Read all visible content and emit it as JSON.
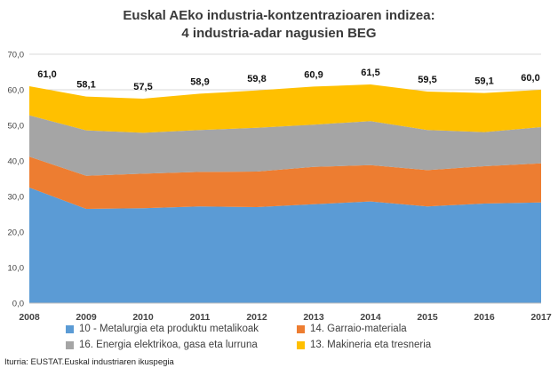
{
  "chart_data": {
    "type": "area",
    "stacked": true,
    "title_line1": "Euskal AEko industria-kontzentrazioaren indizea:",
    "title_line2": "4 industria-adar nagusien BEG",
    "categories": [
      "2008",
      "2009",
      "2010",
      "2011",
      "2012",
      "2013",
      "2014",
      "2015",
      "2016",
      "2017"
    ],
    "yticks": [
      "0,0",
      "10,0",
      "20,0",
      "30,0",
      "40,0",
      "50,0",
      "60,0",
      "70,0"
    ],
    "ylim": [
      0,
      70
    ],
    "grid": true,
    "series": [
      {
        "name": "10 - Metalurgia eta produktu metalikoak",
        "color": "#5B9BD5",
        "values": [
          32.5,
          26.5,
          26.7,
          27.2,
          27.0,
          27.8,
          28.6,
          27.2,
          28.0,
          28.3
        ]
      },
      {
        "name": "14. Garraio-materiala",
        "color": "#ED7D31",
        "values": [
          8.7,
          9.3,
          9.7,
          9.7,
          10.0,
          10.5,
          10.2,
          10.2,
          10.5,
          11.0
        ]
      },
      {
        "name": "16. Energia elektrikoa, gasa eta lurruna",
        "color": "#A5A5A5",
        "values": [
          11.6,
          12.8,
          11.5,
          11.8,
          12.3,
          11.9,
          12.4,
          11.3,
          9.6,
          10.2
        ]
      },
      {
        "name": "13. Makineria eta tresneria",
        "color": "#FFC000",
        "values": [
          8.2,
          9.5,
          9.6,
          10.2,
          10.5,
          10.7,
          10.3,
          10.8,
          11.0,
          10.5
        ]
      }
    ],
    "totals": [
      61.0,
      58.1,
      57.5,
      58.9,
      59.8,
      60.9,
      61.5,
      59.5,
      59.1,
      60.0
    ],
    "total_labels": [
      "61,0",
      "58,1",
      "57,5",
      "58,9",
      "59,8",
      "60,9",
      "61,5",
      "59,5",
      "59,1",
      "60,0"
    ],
    "legend_position": "bottom"
  },
  "source": "Iturria: EUSTAT.Euskal industriaren ikuspegia"
}
